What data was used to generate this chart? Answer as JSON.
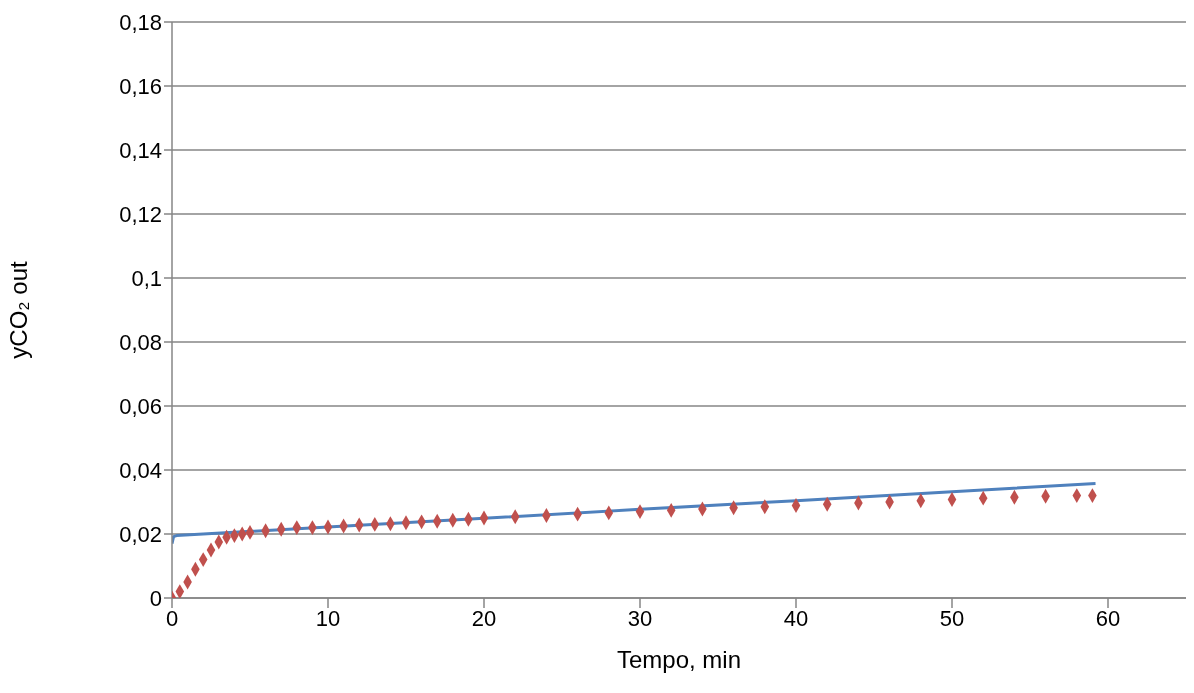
{
  "chart_data": {
    "type": "scatter",
    "xlabel": "Tempo, min",
    "ylabel": "yCO₂ out",
    "xlim": [
      0,
      65
    ],
    "xticks": [
      0,
      10,
      20,
      30,
      40,
      50,
      60
    ],
    "ylim": [
      0,
      0.18
    ],
    "yticks": [
      0,
      {
        "value": 0.02,
        "label": "0,02"
      },
      {
        "value": 0.04,
        "label": "0,04"
      },
      {
        "value": 0.06,
        "label": "0,06"
      },
      {
        "value": 0.08,
        "label": "0,08"
      },
      {
        "value": 0.1,
        "label": "0,1"
      },
      {
        "value": 0.12,
        "label": "0,12"
      },
      {
        "value": 0.14,
        "label": "0,14"
      },
      {
        "value": 0.16,
        "label": "0,16"
      },
      {
        "value": 0.18,
        "label": "0,18"
      }
    ],
    "grid": "y",
    "series": [
      {
        "marker": "diamond",
        "color": "#c0504d",
        "x": [
          0,
          0.5,
          1,
          1.5,
          2,
          2.5,
          3,
          3.5,
          4,
          4.5,
          5,
          6,
          7,
          8,
          9,
          10,
          11,
          12,
          13,
          14,
          15,
          16,
          17,
          18,
          19,
          20,
          22,
          24,
          26,
          28,
          30,
          32,
          34,
          36,
          38,
          40,
          42,
          44,
          46,
          48,
          50,
          52,
          54,
          56,
          58,
          59
        ],
        "values": [
          0,
          0.002,
          0.005,
          0.009,
          0.012,
          0.015,
          0.0175,
          0.019,
          0.0195,
          0.02,
          0.0205,
          0.021,
          0.0215,
          0.022,
          0.022,
          0.0222,
          0.0225,
          0.0228,
          0.023,
          0.0232,
          0.0235,
          0.0238,
          0.024,
          0.0243,
          0.0246,
          0.025,
          0.0254,
          0.0258,
          0.0262,
          0.0266,
          0.027,
          0.0274,
          0.0278,
          0.0282,
          0.0285,
          0.0289,
          0.0293,
          0.0297,
          0.03,
          0.0304,
          0.0308,
          0.0312,
          0.0315,
          0.0318,
          0.032,
          0.032
        ]
      },
      {
        "type": "line",
        "marker": "none",
        "color": "#4f81bd",
        "x": [
          0,
          0.1,
          0.3,
          10,
          20,
          30,
          40,
          50,
          59.2
        ],
        "values": [
          0.017,
          0.0192,
          0.0195,
          0.0222,
          0.0249,
          0.0277,
          0.0304,
          0.0332,
          0.0358
        ]
      }
    ]
  }
}
